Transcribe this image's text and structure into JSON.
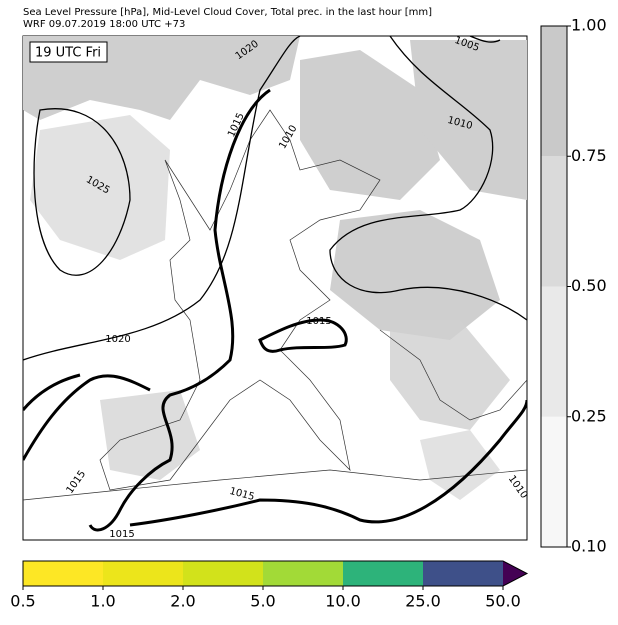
{
  "header": {
    "title": "Sea Level Pressure [hPa], Mid-Level Cloud Cover, Total prec. in the last hour [mm]",
    "subtitle": "WRF 09.07.2019 18:00 UTC +73"
  },
  "map": {
    "time_label": "19 UTC Fri",
    "contour_labels": [
      "1020",
      "1005",
      "1015",
      "1010",
      "1010",
      "1025",
      "1020",
      "1015",
      "1015",
      "1015",
      "1015",
      "1010"
    ]
  },
  "cloud_colorbar": {
    "ticks": [
      {
        "value": 0.1,
        "label": "0.10"
      },
      {
        "value": 0.25,
        "label": "0.25"
      },
      {
        "value": 0.5,
        "label": "0.50"
      },
      {
        "value": 0.75,
        "label": "0.75"
      },
      {
        "value": 1,
        "label": "1.00"
      }
    ],
    "colors": [
      "#f7f7f7",
      "#e9e9e9",
      "#dadada",
      "#c9c9c9"
    ]
  },
  "precip_colorbar": {
    "ticks": [
      0.5,
      {
        "value": 1,
        "label": "1.0"
      },
      {
        "value": 2,
        "label": "2.0"
      },
      {
        "value": 5,
        "label": "5.0"
      },
      {
        "value": 10,
        "label": "10.0"
      },
      {
        "value": 25,
        "label": "25.0"
      },
      {
        "value": 50,
        "label": "50.0"
      }
    ],
    "colors": [
      "#fde725",
      "#ece51b",
      "#d2e21b",
      "#a2da37",
      "#2db37a",
      "#3e5089",
      "#440154"
    ]
  }
}
